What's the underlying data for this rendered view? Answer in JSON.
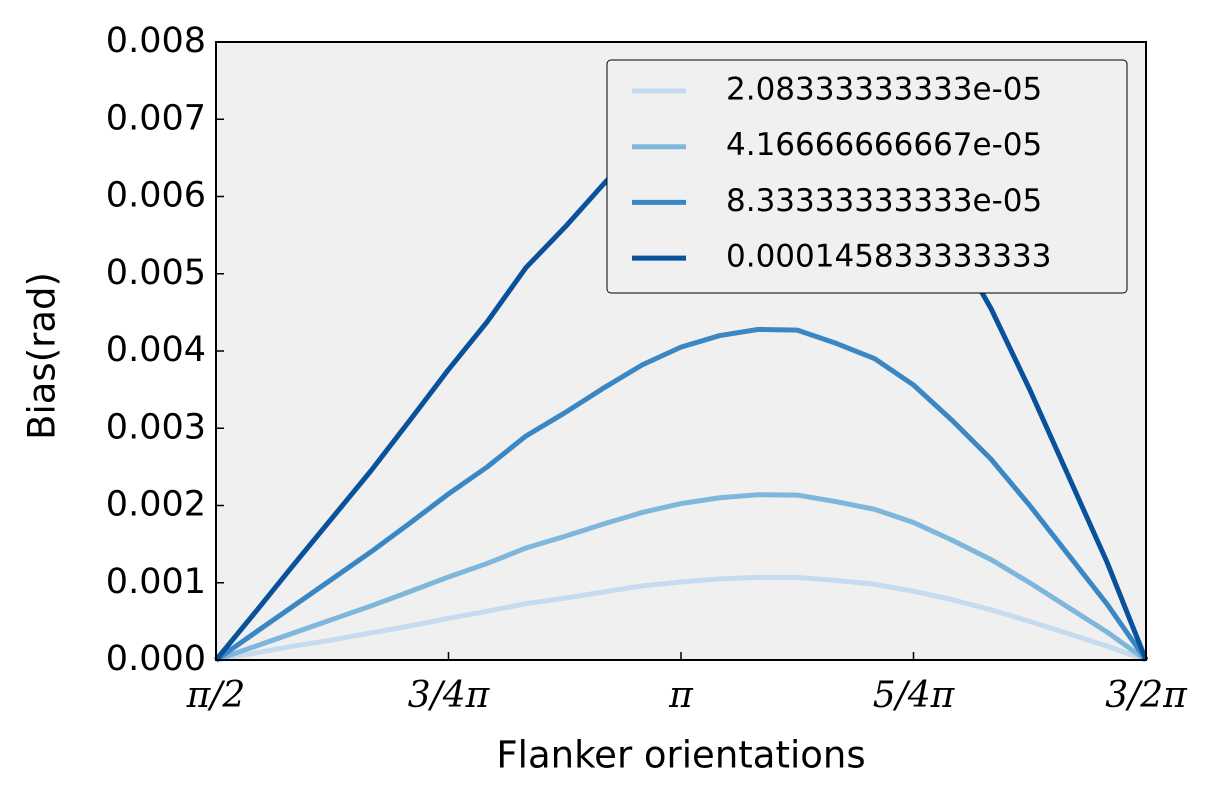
{
  "chart_data": {
    "type": "line",
    "xlabel": "Flanker orientations",
    "ylabel": "Bias(rad)",
    "x": [
      1.5708,
      1.7017,
      1.8326,
      1.9635,
      2.0944,
      2.2253,
      2.3562,
      2.4871,
      2.618,
      2.7489,
      2.8798,
      3.0107,
      3.1416,
      3.2725,
      3.4034,
      3.5343,
      3.6652,
      3.7961,
      3.927,
      4.0579,
      4.1888,
      4.3197,
      4.4506,
      4.5815,
      4.7124
    ],
    "series": [
      {
        "name": "2.08333333333e-05",
        "color": "#c6dbef",
        "values": [
          0,
          9e-05,
          0.00018,
          0.00026,
          0.00035,
          0.00044,
          0.00054,
          0.00063,
          0.00073,
          0.0008,
          0.00088,
          0.00096,
          0.00101,
          0.00105,
          0.00107,
          0.00107,
          0.00103,
          0.00098,
          0.00089,
          0.00078,
          0.00065,
          0.0005,
          0.00034,
          0.00018,
          0
        ]
      },
      {
        "name": "4.16666666667e-05",
        "color": "#7fb6dc",
        "values": [
          0,
          0.000175,
          0.00035,
          0.000525,
          0.0007,
          0.000885,
          0.001075,
          0.00125,
          0.00145,
          0.0016,
          0.00176,
          0.00191,
          0.002025,
          0.0021,
          0.00214,
          0.002135,
          0.00205,
          0.00195,
          0.00178,
          0.00155,
          0.0013,
          0.001,
          0.00068,
          0.00036,
          0
        ]
      },
      {
        "name": "8.33333333333e-05",
        "color": "#3b87c4",
        "values": [
          0,
          0.00035,
          0.0007,
          0.00105,
          0.0014,
          0.00177,
          0.00215,
          0.0025,
          0.0029,
          0.0032,
          0.00352,
          0.00382,
          0.00405,
          0.0042,
          0.00428,
          0.00427,
          0.0041,
          0.0039,
          0.00356,
          0.0031,
          0.0026,
          0.002,
          0.00136,
          0.00072,
          0
        ]
      },
      {
        "name": "0.000145833333333",
        "color": "#0a519c",
        "values": [
          0,
          0.00061,
          0.00123,
          0.00184,
          0.00245,
          0.0031,
          0.00376,
          0.00438,
          0.00508,
          0.0056,
          0.00616,
          0.00669,
          0.00709,
          0.00735,
          0.00749,
          0.00747,
          0.00718,
          0.00683,
          0.00623,
          0.00543,
          0.00455,
          0.0035,
          0.00238,
          0.00126,
          0
        ]
      }
    ],
    "xlim": [
      1.5708,
      4.7124
    ],
    "xticks": [
      {
        "value": 1.5708,
        "label": "π/2"
      },
      {
        "value": 2.3562,
        "label": "3/4π"
      },
      {
        "value": 3.1416,
        "label": "π"
      },
      {
        "value": 3.927,
        "label": "5/4π"
      },
      {
        "value": 4.7124,
        "label": "3/2π"
      }
    ],
    "ylim": [
      0,
      0.008
    ],
    "yticks": [
      {
        "value": 0,
        "label": "0.000"
      },
      {
        "value": 0.001,
        "label": "0.001"
      },
      {
        "value": 0.002,
        "label": "0.002"
      },
      {
        "value": 0.003,
        "label": "0.003"
      },
      {
        "value": 0.004,
        "label": "0.004"
      },
      {
        "value": 0.005,
        "label": "0.005"
      },
      {
        "value": 0.006,
        "label": "0.006"
      },
      {
        "value": 0.007,
        "label": "0.007"
      },
      {
        "value": 0.008,
        "label": "0.008"
      }
    ],
    "grid": false,
    "legend": "upper right"
  }
}
